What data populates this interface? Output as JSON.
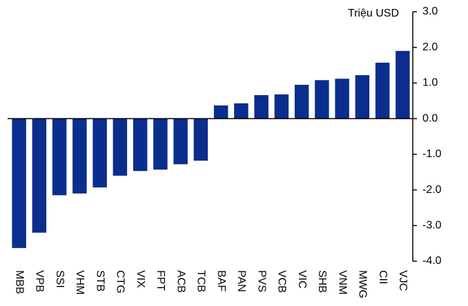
{
  "chart_data": {
    "type": "bar",
    "y_label": "Triệu USD",
    "categories": [
      "MBB",
      "VPB",
      "SSI",
      "VHM",
      "STB",
      "CTG",
      "VIX",
      "FPT",
      "ACB",
      "TCB",
      "BAF",
      "PAN",
      "PVS",
      "VCB",
      "VIC",
      "SHB",
      "VNM",
      "MWG",
      "CII",
      "VJC"
    ],
    "values": [
      -3.63,
      -3.2,
      -2.15,
      -2.1,
      -1.93,
      -1.6,
      -1.47,
      -1.43,
      -1.28,
      -1.18,
      0.37,
      0.43,
      0.66,
      0.68,
      0.95,
      1.08,
      1.12,
      1.22,
      1.57,
      1.9
    ],
    "color": "#0b2d8e",
    "ylim": [
      -4,
      3
    ],
    "yticks": [
      {
        "value": 3,
        "label": "3.0"
      },
      {
        "value": 2,
        "label": "2.0"
      },
      {
        "value": 1,
        "label": "1.0"
      },
      {
        "value": 0,
        "label": "0.0"
      },
      {
        "value": -1,
        "label": "-1.0"
      },
      {
        "value": -2,
        "label": "-2.0"
      },
      {
        "value": -3,
        "label": "-3.0"
      },
      {
        "value": -4,
        "label": "-4.0"
      }
    ],
    "axis_side": "right"
  }
}
